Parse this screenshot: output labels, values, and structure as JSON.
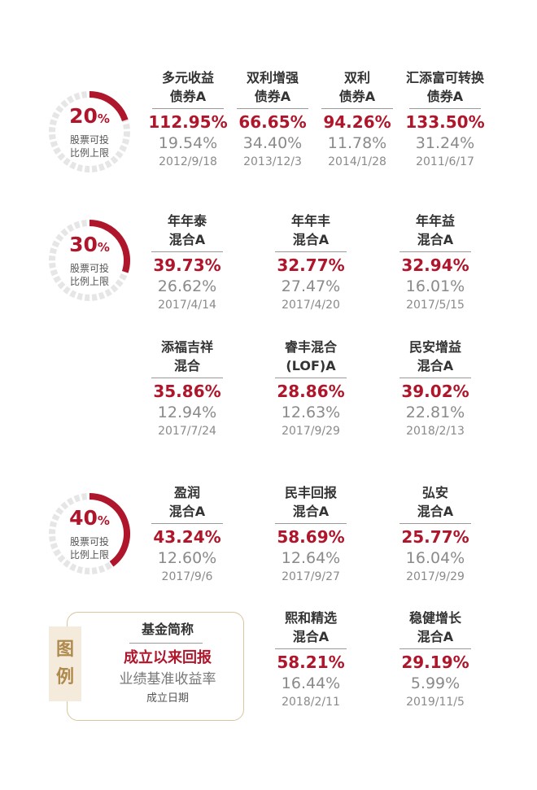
{
  "colors": {
    "accent": "#b0162b",
    "gauge_track": "#e6e6e6",
    "legend_border": "#d8c69c"
  },
  "gauges": [
    {
      "value": "20",
      "unit": "%",
      "caption": "股票可投\n比例上限",
      "fill": 0.2
    },
    {
      "value": "30",
      "unit": "%",
      "caption": "股票可投\n比例上限",
      "fill": 0.3
    },
    {
      "value": "40",
      "unit": "%",
      "caption": "股票可投\n比例上限",
      "fill": 0.4
    }
  ],
  "funds": [
    {
      "name": "多元收益\n债券A",
      "return": "112.95%",
      "benchmark": "19.54%",
      "date": "2012/9/18"
    },
    {
      "name": "双利增强\n债券A",
      "return": "66.65%",
      "benchmark": "34.40%",
      "date": "2013/12/3"
    },
    {
      "name": "双利\n债券A",
      "return": "94.26%",
      "benchmark": "11.78%",
      "date": "2014/1/28"
    },
    {
      "name": "汇添富可转换\n债券A",
      "return": "133.50%",
      "benchmark": "31.24%",
      "date": "2011/6/17"
    },
    {
      "name": "年年泰\n混合A",
      "return": "39.73%",
      "benchmark": "26.62%",
      "date": "2017/4/14"
    },
    {
      "name": "年年丰\n混合A",
      "return": "32.77%",
      "benchmark": "27.47%",
      "date": "2017/4/20"
    },
    {
      "name": "年年益\n混合A",
      "return": "32.94%",
      "benchmark": "16.01%",
      "date": "2017/5/15"
    },
    {
      "name": "添福吉祥\n混合",
      "return": "35.86%",
      "benchmark": "12.94%",
      "date": "2017/7/24"
    },
    {
      "name": "睿丰混合\n(LOF)A",
      "return": "28.86%",
      "benchmark": "12.63%",
      "date": "2017/9/29"
    },
    {
      "name": "民安增益\n混合A",
      "return": "39.02%",
      "benchmark": "22.81%",
      "date": "2018/2/13"
    },
    {
      "name": "盈润\n混合A",
      "return": "43.24%",
      "benchmark": "12.60%",
      "date": "2017/9/6"
    },
    {
      "name": "民丰回报\n混合A",
      "return": "58.69%",
      "benchmark": "12.64%",
      "date": "2017/9/27"
    },
    {
      "name": "弘安\n混合A",
      "return": "25.77%",
      "benchmark": "16.04%",
      "date": "2017/9/29"
    },
    {
      "name": "熙和精选\n混合A",
      "return": "58.21%",
      "benchmark": "16.44%",
      "date": "2018/2/11"
    },
    {
      "name": "稳健增长\n混合A",
      "return": "29.19%",
      "benchmark": "5.99%",
      "date": "2019/11/5"
    }
  ],
  "legend": {
    "tag": "图\n例",
    "fund_name": "基金简称",
    "return": "成立以来回报",
    "benchmark": "业绩基准收益率",
    "date": "成立日期"
  }
}
